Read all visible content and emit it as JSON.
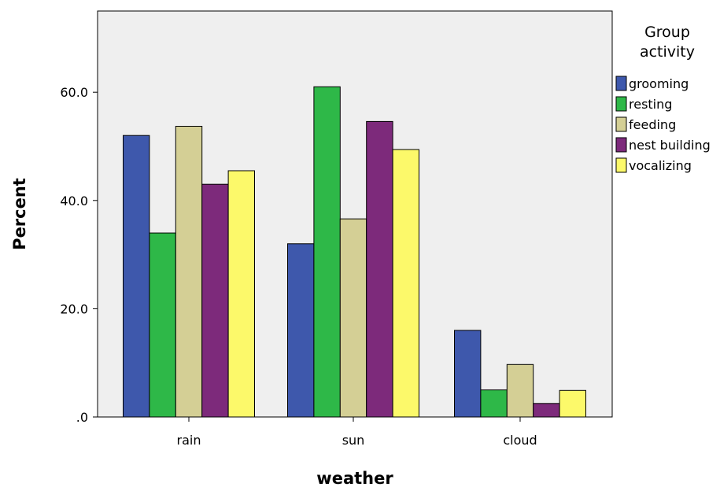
{
  "chart_data": {
    "type": "bar",
    "xlabel": "weather",
    "ylabel": "Percent",
    "categories": [
      "rain",
      "sun",
      "cloud"
    ],
    "ylim": [
      0,
      75
    ],
    "yticks": [
      0,
      20,
      40,
      60
    ],
    "ytick_labels": [
      ".0",
      "20.0",
      "40.0",
      "60.0"
    ],
    "grid": false,
    "plot_background": "#efefef",
    "legend": {
      "title_lines": [
        "Group",
        "activity"
      ],
      "placement": "right"
    },
    "series": [
      {
        "name": "grooming",
        "color": "#3e58ac",
        "values": [
          52.0,
          32.0,
          16.0
        ]
      },
      {
        "name": "resting",
        "color": "#2eb848",
        "values": [
          34.0,
          61.0,
          5.0
        ]
      },
      {
        "name": "feeding",
        "color": "#d4cf95",
        "values": [
          53.7,
          36.6,
          9.7
        ]
      },
      {
        "name": "nest building",
        "color": "#7d2a7b",
        "values": [
          43.0,
          54.6,
          2.5
        ]
      },
      {
        "name": "vocalizing",
        "color": "#fcf96a",
        "values": [
          45.5,
          49.4,
          4.9
        ]
      }
    ]
  }
}
